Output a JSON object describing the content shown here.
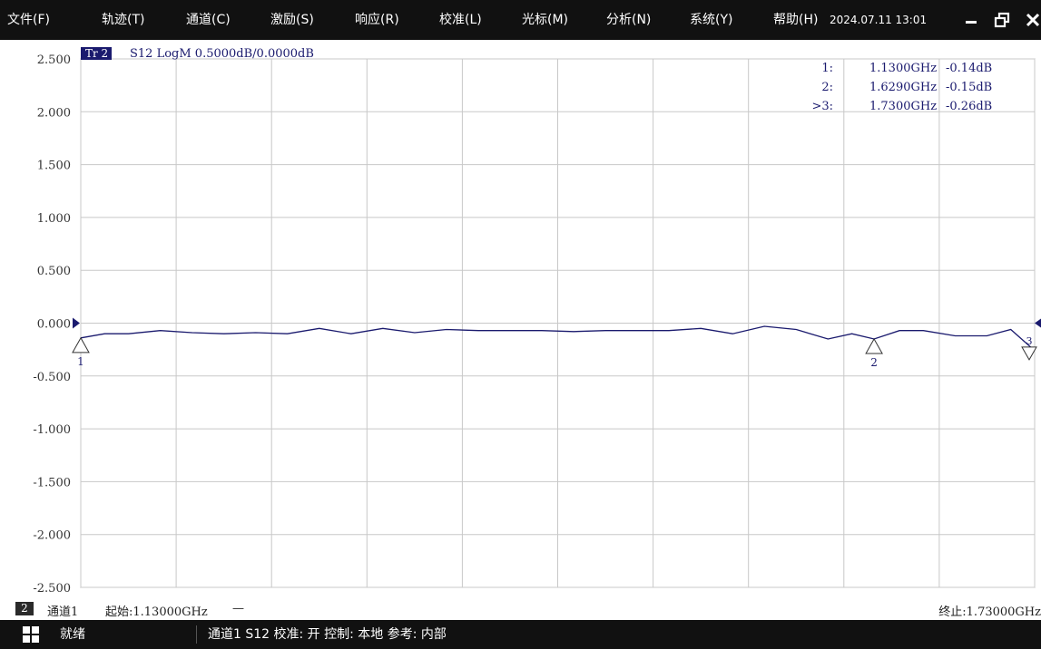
{
  "menu": {
    "items": [
      "文件(F)",
      "轨迹(T)",
      "通道(C)",
      "激励(S)",
      "响应(R)",
      "校准(L)",
      "光标(M)",
      "分析(N)",
      "系统(Y)",
      "帮助(H)"
    ],
    "datetime": "2024.07.11 13:01",
    "minimize_icon": "minimize-icon",
    "restore_icon": "restore-icon",
    "close_icon": "close-icon"
  },
  "trace_header": {
    "badge": "Tr 2",
    "text": "S12 LogM 0.5000dB/0.0000dB"
  },
  "markers": [
    {
      "label": "1:",
      "freq": "1.1300GHz",
      "value": "-0.14dB"
    },
    {
      "label": "2:",
      "freq": "1.6290GHz",
      "value": "-0.15dB"
    },
    {
      "label": ">3:",
      "freq": "1.7300GHz",
      "value": "-0.26dB"
    }
  ],
  "marker_tags": [
    "1",
    "2",
    "3"
  ],
  "colors": {
    "trace": "#1a1a6e",
    "grid": "#c8c8c8",
    "marker_box_bg": "#1a1a6e",
    "reference_arrow": "#1a1a6e"
  },
  "chart_data": {
    "type": "line",
    "title": "",
    "xlabel": "",
    "ylabel": "",
    "yticks": [
      "2.500",
      "2.000",
      "1.500",
      "1.000",
      "0.500",
      "0.000",
      "-0.500",
      "-1.000",
      "-1.500",
      "-2.000",
      "-2.500"
    ],
    "ylim": [
      -2.5,
      2.5
    ],
    "xlim_ghz": [
      1.13,
      1.73
    ],
    "grid": true,
    "reference_level_db": 0.0,
    "series": [
      {
        "x_ghz": [
          1.13,
          1.145,
          1.16,
          1.18,
          1.2,
          1.22,
          1.24,
          1.26,
          1.28,
          1.3,
          1.32,
          1.34,
          1.36,
          1.38,
          1.4,
          1.42,
          1.44,
          1.46,
          1.48,
          1.5,
          1.52,
          1.54,
          1.56,
          1.58,
          1.6,
          1.615,
          1.629,
          1.645,
          1.66,
          1.68,
          1.7,
          1.715,
          1.73
        ],
        "y_db": [
          -0.14,
          -0.1,
          -0.1,
          -0.07,
          -0.09,
          -0.1,
          -0.09,
          -0.1,
          -0.05,
          -0.1,
          -0.05,
          -0.09,
          -0.06,
          -0.07,
          -0.07,
          -0.07,
          -0.08,
          -0.07,
          -0.07,
          -0.07,
          -0.05,
          -0.1,
          -0.03,
          -0.06,
          -0.15,
          -0.1,
          -0.15,
          -0.07,
          -0.07,
          -0.12,
          -0.12,
          -0.06,
          -0.26
        ]
      }
    ],
    "markers": [
      {
        "id": "1",
        "x_ghz": 1.13,
        "y_db": -0.14,
        "style": "up"
      },
      {
        "id": "2",
        "x_ghz": 1.629,
        "y_db": -0.15,
        "style": "up"
      },
      {
        "id": "3",
        "x_ghz": 1.73,
        "y_db": -0.26,
        "style": "down"
      }
    ]
  },
  "status": {
    "channel_num": "2",
    "channel": "通道1",
    "start": "起始:1.13000GHz",
    "dash": "—",
    "stop": "终止:1.73000GHz"
  },
  "taskbar": {
    "ready": "就绪",
    "info": "通道1  S12  校准: 开  控制: 本地  参考: 内部"
  }
}
